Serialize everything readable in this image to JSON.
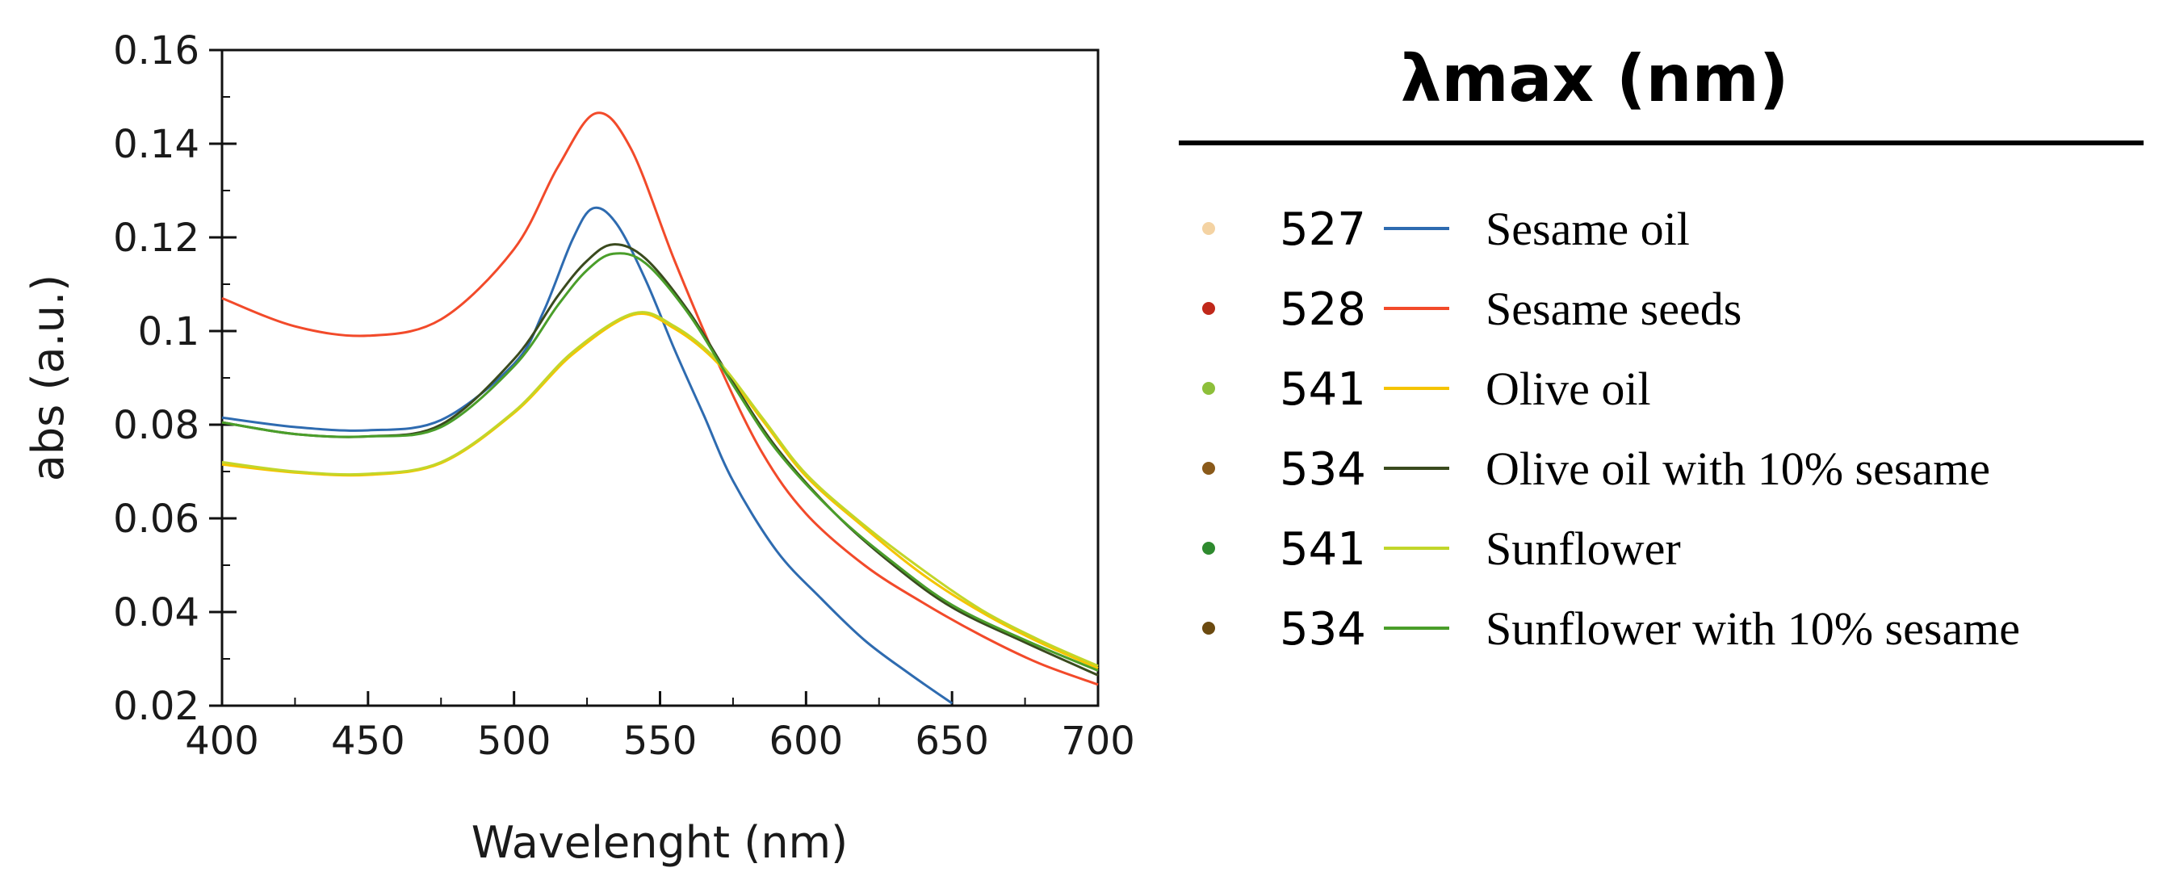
{
  "chart_data": {
    "type": "line",
    "xlabel": "Wavelenght (nm)",
    "ylabel": "abs (a.u.)",
    "xlim": [
      400,
      700
    ],
    "ylim": [
      0.02,
      0.16
    ],
    "xticks": [
      400,
      450,
      500,
      550,
      600,
      650,
      700
    ],
    "yticks": [
      0.02,
      0.04,
      0.06,
      0.08,
      0.1,
      0.12,
      0.14,
      0.16
    ],
    "xtick_labels": [
      "400",
      "450",
      "500",
      "550",
      "600",
      "650",
      "700"
    ],
    "ytick_labels": [
      "0.02",
      "0.04",
      "0.06",
      "0.08",
      "0.1",
      "0.12",
      "0.14",
      "0.16"
    ],
    "legend_title": "λmax (nm)",
    "legend_position": "right",
    "series": [
      {
        "name": "Sesame oil",
        "lambda_max": "527",
        "color": "#2e6bb0",
        "marker_color": "#f4d3a3",
        "x": [
          400,
          425,
          450,
          475,
          500,
          510,
          520,
          527,
          535,
          545,
          555,
          565,
          575,
          590,
          605,
          620,
          635,
          650
        ],
        "y": [
          0.0815,
          0.0795,
          0.0788,
          0.081,
          0.093,
          0.104,
          0.1195,
          0.1262,
          0.123,
          0.111,
          0.096,
          0.082,
          0.068,
          0.053,
          0.043,
          0.034,
          0.027,
          0.0205
        ]
      },
      {
        "name": "Sesame seeds",
        "lambda_max": "528",
        "color": "#f24a2a",
        "marker_color": "#c0281a",
        "x": [
          400,
          425,
          450,
          475,
          500,
          515,
          528,
          540,
          555,
          570,
          585,
          600,
          620,
          640,
          660,
          680,
          700
        ],
        "y": [
          0.107,
          0.101,
          0.099,
          0.1025,
          0.1175,
          0.135,
          0.1465,
          0.139,
          0.115,
          0.093,
          0.074,
          0.061,
          0.05,
          0.042,
          0.035,
          0.029,
          0.0245
        ]
      },
      {
        "name": "Olive oil",
        "lambda_max": "541",
        "color": "#f5c400",
        "marker_color": "#8dbf3a",
        "x": [
          400,
          425,
          450,
          475,
          500,
          520,
          541,
          555,
          570,
          585,
          600,
          620,
          640,
          660,
          680,
          700
        ],
        "y": [
          0.0715,
          0.0698,
          0.0693,
          0.0718,
          0.0825,
          0.095,
          0.1035,
          0.1005,
          0.093,
          0.081,
          0.069,
          0.058,
          0.048,
          0.04,
          0.0335,
          0.028
        ]
      },
      {
        "name": "Olive oil with 10% sesame",
        "lambda_max": "534",
        "color": "#3a4a1e",
        "marker_color": "#8a5a1a",
        "x": [
          400,
          425,
          450,
          475,
          500,
          515,
          525,
          534,
          545,
          560,
          575,
          590,
          610,
          630,
          650,
          675,
          700
        ],
        "y": [
          0.0805,
          0.078,
          0.0775,
          0.08,
          0.094,
          0.1075,
          0.115,
          0.1185,
          0.1155,
          0.104,
          0.089,
          0.075,
          0.061,
          0.05,
          0.041,
          0.0335,
          0.0265
        ]
      },
      {
        "name": "Sunflower",
        "lambda_max": "541",
        "color": "#c2d62a",
        "marker_color": "#2e8a2e",
        "x": [
          400,
          425,
          450,
          475,
          500,
          520,
          541,
          555,
          570,
          585,
          600,
          620,
          640,
          660,
          680,
          700
        ],
        "y": [
          0.072,
          0.07,
          0.0695,
          0.072,
          0.0828,
          0.0955,
          0.1038,
          0.101,
          0.0935,
          0.0815,
          0.0695,
          0.0585,
          0.049,
          0.0405,
          0.034,
          0.0285
        ]
      },
      {
        "name": "Sunflower with 10% sesame",
        "lambda_max": "534",
        "color": "#4a9e2a",
        "marker_color": "#6b4a10",
        "x": [
          400,
          425,
          450,
          475,
          500,
          515,
          525,
          534,
          545,
          560,
          575,
          590,
          610,
          630,
          650,
          675,
          700
        ],
        "y": [
          0.0805,
          0.078,
          0.0775,
          0.0795,
          0.0925,
          0.1055,
          0.113,
          0.1165,
          0.1145,
          0.1035,
          0.0885,
          0.0745,
          0.061,
          0.0505,
          0.0415,
          0.034,
          0.0275
        ]
      }
    ]
  }
}
